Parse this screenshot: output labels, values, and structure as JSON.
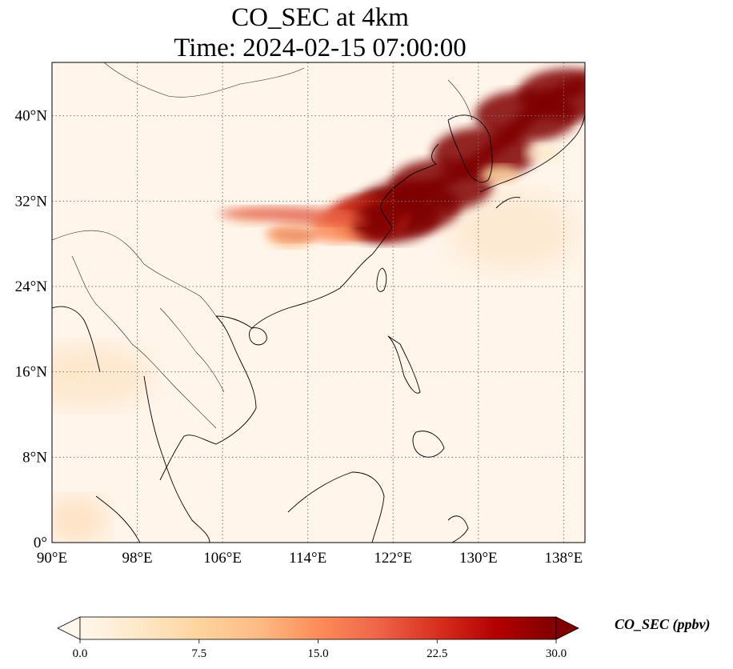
{
  "title": {
    "line1": "CO_SEC at 4km",
    "line2": "Time: 2024-02-15 07:00:00"
  },
  "colorbar": {
    "label": "CO_SEC (ppbv)",
    "ticks": [
      "0.0",
      "7.5",
      "15.0",
      "22.5",
      "30.0"
    ],
    "min": 0,
    "max": 30,
    "extend": "both",
    "colormap": [
      "#fff7ec",
      "#fee8c8",
      "#fdd49e",
      "#fdbb84",
      "#fc8d59",
      "#ef6548",
      "#d7301f",
      "#b30000",
      "#7f0000"
    ]
  },
  "chart_data": {
    "type": "heatmap",
    "title": "CO_SEC at 4km",
    "subtitle": "Time: 2024-02-15 07:00:00",
    "xlim": [
      90,
      140
    ],
    "ylim": [
      0,
      45
    ],
    "grid": true,
    "x_ticks": [
      {
        "value": 90,
        "label": "90°E"
      },
      {
        "value": 98,
        "label": "98°E"
      },
      {
        "value": 106,
        "label": "106°E"
      },
      {
        "value": 114,
        "label": "114°E"
      },
      {
        "value": 122,
        "label": "122°E"
      },
      {
        "value": 130,
        "label": "130°E"
      },
      {
        "value": 138,
        "label": "138°E"
      }
    ],
    "y_ticks": [
      {
        "value": 0,
        "label": "0°"
      },
      {
        "value": 8,
        "label": "8°N"
      },
      {
        "value": 16,
        "label": "16°N"
      },
      {
        "value": 24,
        "label": "24°N"
      },
      {
        "value": 32,
        "label": "32°N"
      },
      {
        "value": 40,
        "label": "40°N"
      }
    ],
    "plumes": [
      {
        "lon": 121.5,
        "lat": 30.5,
        "value": 30
      },
      {
        "lon": 123.5,
        "lat": 31.5,
        "value": 30
      },
      {
        "lon": 126.5,
        "lat": 33.5,
        "value": 30
      },
      {
        "lon": 130.5,
        "lat": 36.5,
        "value": 30
      },
      {
        "lon": 134.5,
        "lat": 40.0,
        "value": 30
      },
      {
        "lon": 138.5,
        "lat": 42.0,
        "value": 30
      },
      {
        "lon": 119.5,
        "lat": 30.5,
        "value": 22
      },
      {
        "lon": 117.0,
        "lat": 29.5,
        "value": 14
      },
      {
        "lon": 112.5,
        "lat": 28.8,
        "value": 10
      },
      {
        "lon": 108.5,
        "lat": 30.5,
        "value": 5
      },
      {
        "lon": 132.0,
        "lat": 34.5,
        "value": 6
      },
      {
        "lon": 136.0,
        "lat": 36.5,
        "value": 5
      },
      {
        "lon": 92.0,
        "lat": 16.0,
        "value": 3
      }
    ]
  }
}
